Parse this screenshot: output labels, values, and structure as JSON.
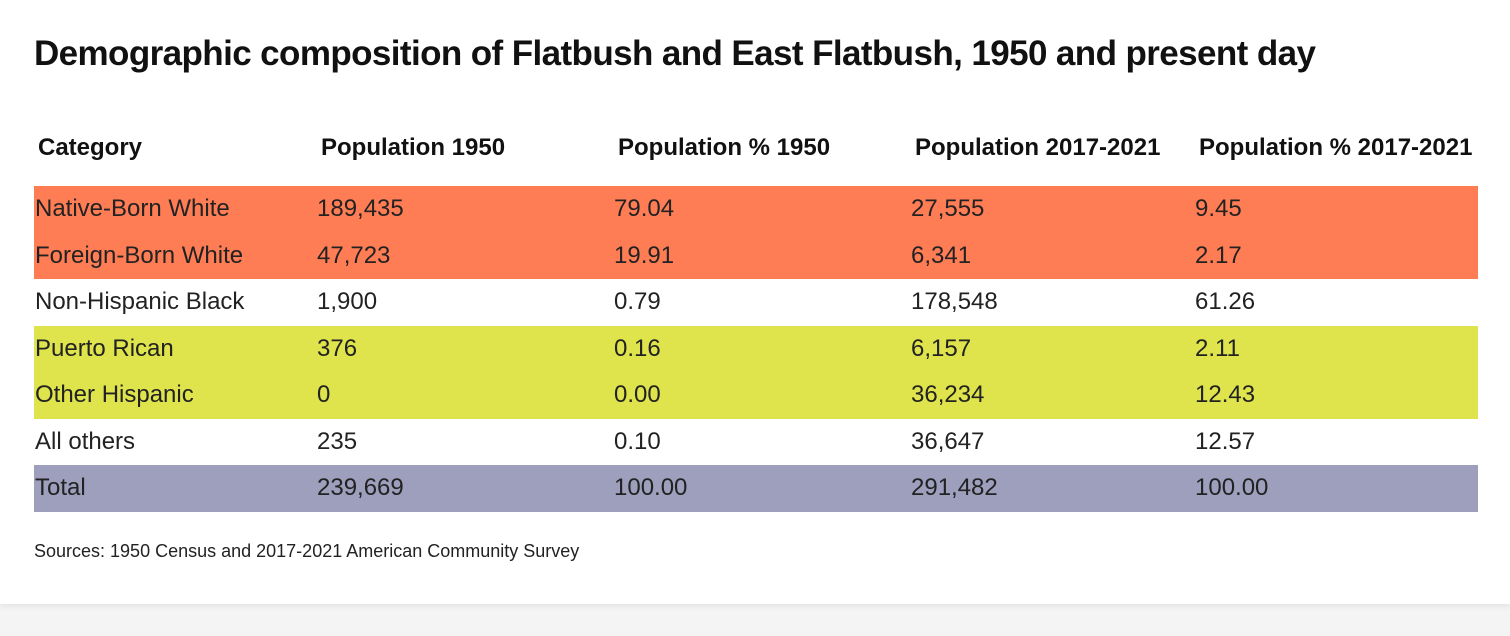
{
  "colors": {
    "white_group": "#ff7d55",
    "hispanic_group": "#dfe44c",
    "total": "#9d9fbd",
    "plain": "#ffffff"
  },
  "chart_data": {
    "type": "table",
    "title": "Demographic composition of Flatbush and East Flatbush, 1950 and present day",
    "columns": [
      "Category",
      "Population 1950",
      "Population % 1950",
      "Population 2017-2021",
      "Population % 2017-2021"
    ],
    "rows": [
      {
        "cells": [
          "Native-Born White",
          "189,435",
          "79.04",
          "27,555",
          "9.45"
        ],
        "color": "#ff7d55"
      },
      {
        "cells": [
          "Foreign-Born White",
          "47,723",
          "19.91",
          "6,341",
          "2.17"
        ],
        "color": "#ff7d55"
      },
      {
        "cells": [
          "Non-Hispanic Black",
          "1,900",
          "0.79",
          "178,548",
          "61.26"
        ],
        "color": "#ffffff"
      },
      {
        "cells": [
          "Puerto Rican",
          "376",
          "0.16",
          "6,157",
          "2.11"
        ],
        "color": "#dfe44c"
      },
      {
        "cells": [
          "Other Hispanic",
          "0",
          "0.00",
          "36,234",
          "12.43"
        ],
        "color": "#dfe44c"
      },
      {
        "cells": [
          "All others",
          "235",
          "0.10",
          "36,647",
          "12.57"
        ],
        "color": "#ffffff"
      },
      {
        "cells": [
          "Total",
          "239,669",
          "100.00",
          "291,482",
          "100.00"
        ],
        "color": "#9d9fbd"
      }
    ],
    "source": "Sources: 1950 Census and 2017-2021 American Community Survey"
  }
}
